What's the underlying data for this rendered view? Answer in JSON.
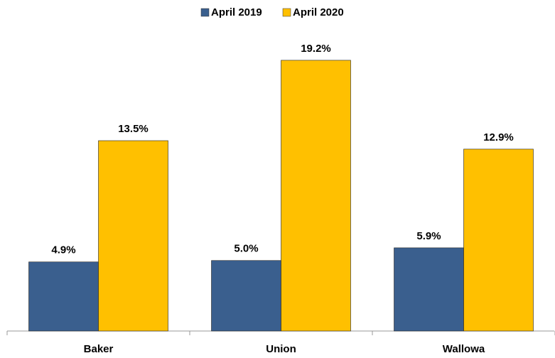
{
  "chart_data": {
    "type": "bar",
    "categories": [
      "Baker",
      "Union",
      "Wallowa"
    ],
    "series": [
      {
        "name": "April 2019",
        "color": "#3a5f8e",
        "values": [
          4.9,
          5.0,
          5.9
        ],
        "value_labels": [
          "4.9%",
          "5.0%",
          "5.9%"
        ]
      },
      {
        "name": "April 2020",
        "color": "#ffc000",
        "values": [
          13.5,
          19.2,
          12.9
        ],
        "value_labels": [
          "13.5%",
          "19.2%",
          "12.9%"
        ]
      }
    ],
    "ylim": [
      0,
      20
    ],
    "legend": "top"
  }
}
